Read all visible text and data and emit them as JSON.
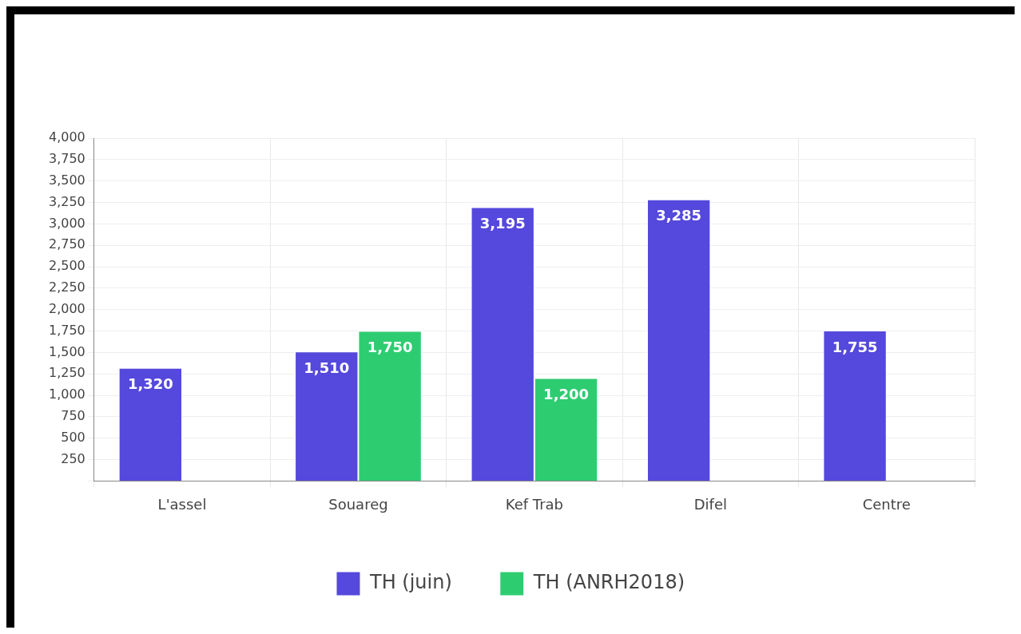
{
  "chart_data": {
    "type": "bar",
    "categories": [
      "L'assel",
      "Souareg",
      "Kef Trab",
      "Difel",
      "Centre"
    ],
    "series": [
      {
        "name": "TH (juin)",
        "color": "#5548dc",
        "values": [
          1320,
          1510,
          3195,
          3285,
          1755
        ],
        "value_labels": [
          "1,320",
          "1,510",
          "3,195",
          "3,285",
          "1,755"
        ]
      },
      {
        "name": "TH (ANRH2018)",
        "color": "#2ecc71",
        "values": [
          null,
          1750,
          1200,
          null,
          null
        ],
        "value_labels": [
          null,
          "1,750",
          "1,200",
          null,
          null
        ]
      }
    ],
    "ylim": [
      0,
      4000
    ],
    "yticks": [
      {
        "value": 0,
        "label": null
      },
      {
        "value": 250,
        "label": "250"
      },
      {
        "value": 500,
        "label": "500"
      },
      {
        "value": 750,
        "label": "750"
      },
      {
        "value": 1000,
        "label": "1,000"
      },
      {
        "value": 1250,
        "label": "1,250"
      },
      {
        "value": 1500,
        "label": "1,500"
      },
      {
        "value": 1750,
        "label": "1,750"
      },
      {
        "value": 2000,
        "label": "2,000"
      },
      {
        "value": 2250,
        "label": "2,250"
      },
      {
        "value": 2500,
        "label": "2,500"
      },
      {
        "value": 2750,
        "label": "2,750"
      },
      {
        "value": 3000,
        "label": "3,000"
      },
      {
        "value": 3250,
        "label": "3,250"
      },
      {
        "value": 3500,
        "label": "3,500"
      },
      {
        "value": 3750,
        "label": "3,750"
      },
      {
        "value": 4000,
        "label": "4,000"
      }
    ],
    "grid": true,
    "legend": "bottom"
  }
}
